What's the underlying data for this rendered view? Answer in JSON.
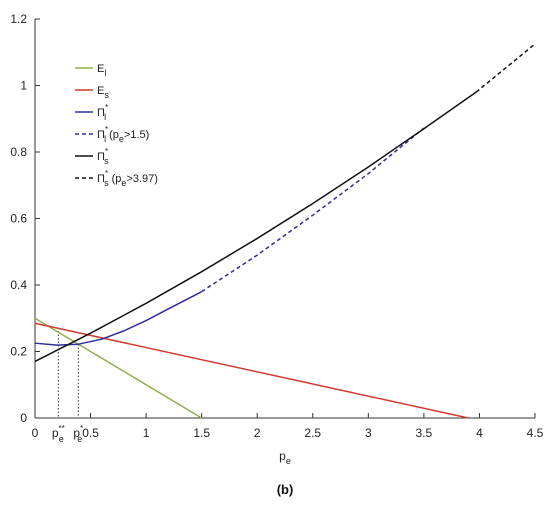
{
  "chart_data": {
    "type": "line",
    "xlabel": "p",
    "xlabel_sub": "e",
    "ylabel": "",
    "xlim": [
      0,
      4.5
    ],
    "ylim": [
      0,
      1.2
    ],
    "xticks": [
      0,
      0.5,
      1,
      1.5,
      2,
      2.5,
      3,
      3.5,
      4,
      4.5
    ],
    "xtick_labels": [
      "0",
      "0.5",
      "1",
      "1.5",
      "2",
      "2.5",
      "3",
      "3.5",
      "4",
      "4.5"
    ],
    "yticks": [
      0,
      0.2,
      0.4,
      0.6,
      0.8,
      1,
      1.2
    ],
    "ytick_labels": [
      "0",
      "0.2",
      "0.4",
      "0.6",
      "0.8",
      "1",
      "1.2"
    ],
    "grid": false,
    "legend_position": "top-left",
    "caption": "(b)",
    "marked_points": [
      {
        "main": "p",
        "sub": "e",
        "sup": "**",
        "x": 0.21,
        "y": 0.272
      },
      {
        "main": "p",
        "sub": "e",
        "sup": "*",
        "x": 0.39,
        "y": 0.222
      }
    ],
    "series": [
      {
        "label_main": "E",
        "label_sub": "l",
        "label_sup": "",
        "label_suffix": "",
        "color": "#8fb04a",
        "dash": "solid",
        "x": [
          0,
          1.5
        ],
        "y": [
          0.3,
          0.0
        ]
      },
      {
        "label_main": "E",
        "label_sub": "s",
        "label_sup": "",
        "label_suffix": "",
        "color": "#d03a30",
        "dash": "solid",
        "x": [
          0,
          3.9
        ],
        "y": [
          0.285,
          0.0
        ]
      },
      {
        "label_main": "Π",
        "label_sub": "l",
        "label_sup": "*",
        "label_suffix": "",
        "color": "#2e2e9e",
        "dash": "solid",
        "x": [
          0,
          0.2,
          0.39,
          0.6,
          0.8,
          1.0,
          1.2,
          1.5
        ],
        "y": [
          0.225,
          0.219,
          0.222,
          0.237,
          0.262,
          0.293,
          0.328,
          0.38
        ]
      },
      {
        "label_main": "Π",
        "label_sub": "l",
        "label_sup": "*",
        "label_suffix": " (p",
        "label_suffix_sub": "e",
        "label_suffix_end": ">1.5)",
        "color": "#2e2e9e",
        "dash": "dashed",
        "x": [
          1.5,
          2.0,
          2.5,
          3.0,
          3.5
        ],
        "y": [
          0.38,
          0.49,
          0.61,
          0.735,
          0.872
        ]
      },
      {
        "label_main": "Π",
        "label_sub": "s",
        "label_sup": "*",
        "label_suffix": "",
        "color": "#111111",
        "dash": "solid",
        "x": [
          0,
          0.5,
          1.0,
          1.5,
          2.0,
          2.5,
          3.0,
          3.5,
          3.97
        ],
        "y": [
          0.17,
          0.255,
          0.345,
          0.44,
          0.54,
          0.645,
          0.755,
          0.87,
          0.98
        ]
      },
      {
        "label_main": "Π",
        "label_sub": "s",
        "label_sup": "*",
        "label_suffix": " (p",
        "label_suffix_sub": "e",
        "label_suffix_end": ">3.97)",
        "color": "#111111",
        "dash": "dashed",
        "x": [
          3.97,
          4.5
        ],
        "y": [
          0.98,
          1.125
        ]
      }
    ]
  }
}
